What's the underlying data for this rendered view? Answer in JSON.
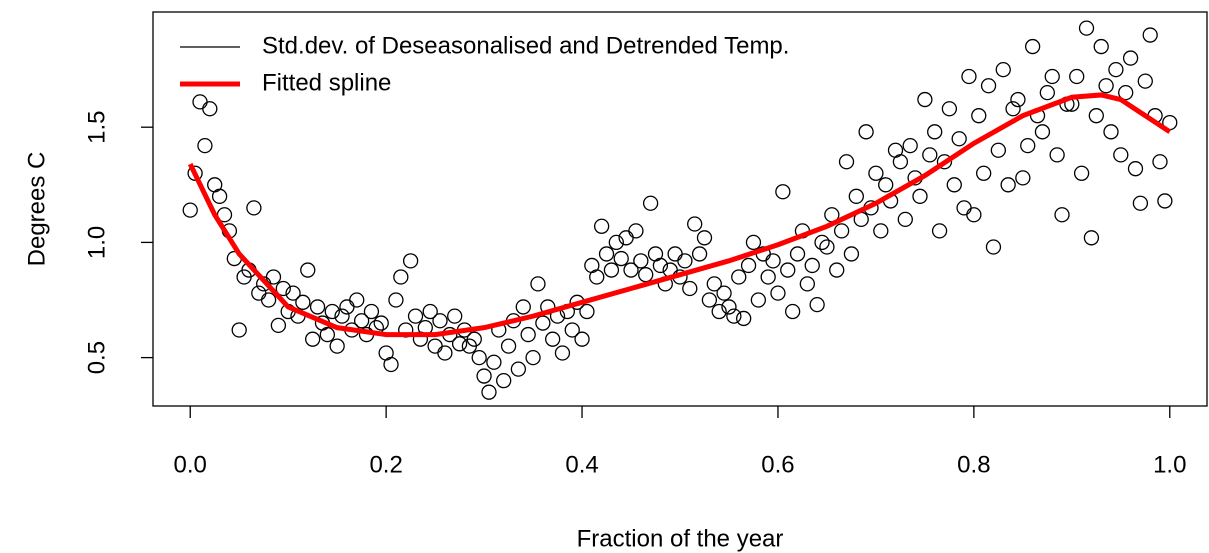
{
  "chart_data": {
    "type": "scatter",
    "xlabel": "Fraction of the year",
    "ylabel": "Degrees C",
    "xlim": [
      -0.038,
      1.038
    ],
    "ylim": [
      0.29,
      2.0
    ],
    "xticks": [
      {
        "value": 0,
        "label": "0.0"
      },
      0.2,
      0.4,
      0.6,
      0.8,
      {
        "value": 1,
        "label": "1.0"
      }
    ],
    "yticks": [
      0.5,
      {
        "value": 1,
        "label": "1.0"
      },
      1.5
    ],
    "legend": "top-left",
    "series": [
      {
        "name": "Std.dev. of Deseasonalised and Detrended Temp.",
        "color": "#000000",
        "x": [
          0,
          0.005,
          0.01,
          0.015,
          0.02,
          0.025,
          0.03,
          0.035,
          0.04,
          0.045,
          0.05,
          0.055,
          0.06,
          0.065,
          0.07,
          0.075,
          0.08,
          0.085,
          0.09,
          0.095,
          0.1,
          0.105,
          0.11,
          0.115,
          0.12,
          0.125,
          0.13,
          0.135,
          0.14,
          0.145,
          0.15,
          0.155,
          0.16,
          0.165,
          0.17,
          0.175,
          0.18,
          0.185,
          0.19,
          0.195,
          0.2,
          0.205,
          0.21,
          0.215,
          0.22,
          0.225,
          0.23,
          0.235,
          0.24,
          0.245,
          0.25,
          0.255,
          0.26,
          0.265,
          0.27,
          0.275,
          0.28,
          0.285,
          0.29,
          0.295,
          0.3,
          0.305,
          0.31,
          0.315,
          0.32,
          0.325,
          0.33,
          0.335,
          0.34,
          0.345,
          0.35,
          0.355,
          0.36,
          0.365,
          0.37,
          0.375,
          0.38,
          0.385,
          0.39,
          0.395,
          0.4,
          0.405,
          0.41,
          0.415,
          0.42,
          0.425,
          0.43,
          0.435,
          0.44,
          0.445,
          0.45,
          0.455,
          0.46,
          0.465,
          0.47,
          0.475,
          0.48,
          0.485,
          0.49,
          0.495,
          0.5,
          0.505,
          0.51,
          0.515,
          0.52,
          0.525,
          0.53,
          0.535,
          0.54,
          0.545,
          0.55,
          0.555,
          0.56,
          0.565,
          0.57,
          0.575,
          0.58,
          0.585,
          0.59,
          0.595,
          0.6,
          0.605,
          0.61,
          0.615,
          0.62,
          0.625,
          0.63,
          0.635,
          0.64,
          0.645,
          0.65,
          0.655,
          0.66,
          0.665,
          0.67,
          0.675,
          0.68,
          0.685,
          0.69,
          0.695,
          0.7,
          0.705,
          0.71,
          0.715,
          0.72,
          0.725,
          0.73,
          0.735,
          0.74,
          0.745,
          0.75,
          0.755,
          0.76,
          0.765,
          0.77,
          0.775,
          0.78,
          0.785,
          0.79,
          0.795,
          0.8,
          0.805,
          0.81,
          0.815,
          0.82,
          0.825,
          0.83,
          0.835,
          0.84,
          0.845,
          0.85,
          0.855,
          0.86,
          0.865,
          0.87,
          0.875,
          0.88,
          0.885,
          0.89,
          0.895,
          0.9,
          0.905,
          0.91,
          0.915,
          0.92,
          0.925,
          0.93,
          0.935,
          0.94,
          0.945,
          0.95,
          0.955,
          0.96,
          0.965,
          0.97,
          0.975,
          0.98,
          0.985,
          0.99,
          0.995,
          1
        ],
        "values": [
          1.14,
          1.3,
          1.61,
          1.42,
          1.58,
          1.25,
          1.2,
          1.12,
          1.05,
          0.93,
          0.62,
          0.85,
          0.88,
          1.15,
          0.78,
          0.82,
          0.75,
          0.85,
          0.64,
          0.8,
          0.7,
          0.78,
          0.68,
          0.74,
          0.88,
          0.58,
          0.72,
          0.65,
          0.6,
          0.7,
          0.55,
          0.68,
          0.72,
          0.62,
          0.75,
          0.66,
          0.6,
          0.7,
          0.63,
          0.65,
          0.52,
          0.47,
          0.75,
          0.85,
          0.62,
          0.92,
          0.68,
          0.58,
          0.63,
          0.7,
          0.55,
          0.66,
          0.52,
          0.6,
          0.68,
          0.56,
          0.62,
          0.55,
          0.58,
          0.5,
          0.42,
          0.35,
          0.48,
          0.62,
          0.4,
          0.55,
          0.66,
          0.45,
          0.72,
          0.6,
          0.5,
          0.82,
          0.65,
          0.72,
          0.58,
          0.68,
          0.52,
          0.7,
          0.62,
          0.74,
          0.58,
          0.7,
          0.9,
          0.85,
          1.07,
          0.95,
          0.88,
          1.0,
          0.93,
          1.02,
          0.88,
          1.05,
          0.92,
          0.86,
          1.17,
          0.95,
          0.9,
          0.82,
          0.88,
          0.95,
          0.85,
          0.92,
          0.8,
          1.08,
          0.95,
          1.02,
          0.75,
          0.82,
          0.7,
          0.78,
          0.72,
          0.68,
          0.85,
          0.67,
          0.9,
          1.0,
          0.75,
          0.95,
          0.85,
          0.92,
          0.78,
          1.22,
          0.88,
          0.7,
          0.95,
          1.05,
          0.82,
          0.9,
          0.73,
          1.0,
          0.98,
          1.12,
          0.88,
          1.05,
          1.35,
          0.95,
          1.2,
          1.1,
          1.48,
          1.15,
          1.3,
          1.05,
          1.25,
          1.18,
          1.4,
          1.35,
          1.1,
          1.42,
          1.28,
          1.2,
          1.62,
          1.38,
          1.48,
          1.05,
          1.35,
          1.58,
          1.25,
          1.45,
          1.15,
          1.72,
          1.12,
          1.55,
          1.3,
          1.68,
          0.98,
          1.4,
          1.75,
          1.25,
          1.58,
          1.62,
          1.28,
          1.42,
          1.85,
          1.55,
          1.48,
          1.65,
          1.72,
          1.38,
          1.12,
          1.6,
          1.6,
          1.72,
          1.3,
          1.93,
          1.02,
          1.55,
          1.85,
          1.68,
          1.48,
          1.75,
          1.38,
          1.65,
          1.8,
          1.32,
          1.17,
          1.7,
          1.9,
          1.55,
          1.35,
          1.18,
          1.52
        ]
      },
      {
        "name": "Fitted spline",
        "color": "#ff0000",
        "line": true,
        "x": [
          0,
          0.025,
          0.05,
          0.1,
          0.15,
          0.2,
          0.25,
          0.3,
          0.35,
          0.4,
          0.45,
          0.5,
          0.55,
          0.6,
          0.65,
          0.7,
          0.75,
          0.8,
          0.85,
          0.9,
          0.93,
          0.95,
          1
        ],
        "values": [
          1.34,
          1.12,
          0.95,
          0.72,
          0.63,
          0.6,
          0.6,
          0.63,
          0.68,
          0.74,
          0.8,
          0.86,
          0.92,
          0.99,
          1.07,
          1.17,
          1.29,
          1.43,
          1.55,
          1.63,
          1.64,
          1.62,
          1.48
        ]
      }
    ]
  }
}
